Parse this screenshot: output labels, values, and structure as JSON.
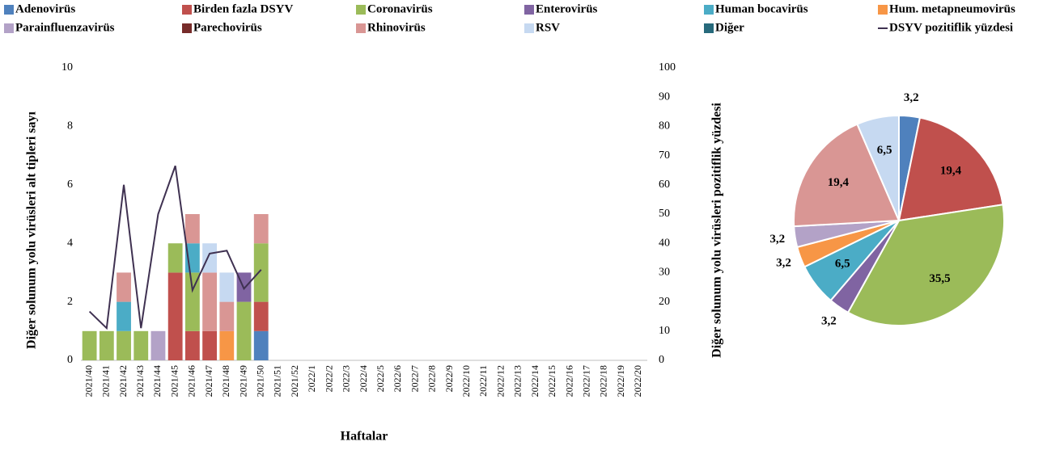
{
  "chart_data": [
    {
      "type": "bar",
      "categories": [
        "2021/40",
        "2021/41",
        "2021/42",
        "2021/43",
        "2021/44",
        "2021/45",
        "2021/46",
        "2021/47",
        "2021/48",
        "2021/49",
        "2021/50",
        "2021/51",
        "2021/52",
        "2022/1",
        "2022/2",
        "2022/3",
        "2022/4",
        "2022/5",
        "2022/6",
        "2022/7",
        "2022/8",
        "2022/9",
        "2022/10",
        "2022/11",
        "2022/12",
        "2022/13",
        "2022/14",
        "2022/15",
        "2022/16",
        "2022/17",
        "2022/18",
        "2022/19",
        "2022/20"
      ],
      "xlabel": "Haftalar",
      "ylabel": "Diğer solunum yolu virüsleri alt tipleri sayı",
      "y2label": "Diğer solunum yolu virüsleri pozitiflik yüzdesi",
      "ylim": [
        0,
        10
      ],
      "yticks": [
        0,
        2,
        4,
        6,
        8,
        10
      ],
      "y2lim": [
        0,
        100
      ],
      "y2ticks": [
        0,
        10,
        20,
        30,
        40,
        50,
        60,
        70,
        80,
        90,
        100
      ],
      "grid": false,
      "stacked": true,
      "legend": "top",
      "series": [
        {
          "name": "Adenovirüs",
          "color": "#4f81bd",
          "values": [
            0,
            0,
            0,
            0,
            0,
            0,
            0,
            0,
            0,
            0,
            1,
            null,
            null,
            null,
            null,
            null,
            null,
            null,
            null,
            null,
            null,
            null,
            null,
            null,
            null,
            null,
            null,
            null,
            null,
            null,
            null,
            null,
            null
          ]
        },
        {
          "name": "Birden fazla DSYV",
          "color": "#c0504d",
          "values": [
            0,
            0,
            0,
            0,
            0,
            3,
            1,
            1,
            0,
            0,
            1,
            null,
            null,
            null,
            null,
            null,
            null,
            null,
            null,
            null,
            null,
            null,
            null,
            null,
            null,
            null,
            null,
            null,
            null,
            null,
            null,
            null,
            null
          ]
        },
        {
          "name": "Coronavirüs",
          "color": "#9bbb59",
          "values": [
            1,
            1,
            1,
            1,
            0,
            1,
            2,
            0,
            0,
            2,
            2,
            null,
            null,
            null,
            null,
            null,
            null,
            null,
            null,
            null,
            null,
            null,
            null,
            null,
            null,
            null,
            null,
            null,
            null,
            null,
            null,
            null,
            null
          ]
        },
        {
          "name": "Enterovirüs",
          "color": "#8064a2",
          "values": [
            0,
            0,
            0,
            0,
            0,
            0,
            0,
            0,
            0,
            1,
            0,
            null,
            null,
            null,
            null,
            null,
            null,
            null,
            null,
            null,
            null,
            null,
            null,
            null,
            null,
            null,
            null,
            null,
            null,
            null,
            null,
            null,
            null
          ]
        },
        {
          "name": "Human bocavirüs",
          "color": "#4bacc6",
          "values": [
            0,
            0,
            1,
            0,
            0,
            0,
            1,
            0,
            0,
            0,
            0,
            null,
            null,
            null,
            null,
            null,
            null,
            null,
            null,
            null,
            null,
            null,
            null,
            null,
            null,
            null,
            null,
            null,
            null,
            null,
            null,
            null,
            null
          ]
        },
        {
          "name": "Hum. metapneumovirüs",
          "color": "#f79646",
          "values": [
            0,
            0,
            0,
            0,
            0,
            0,
            0,
            0,
            1,
            0,
            0,
            null,
            null,
            null,
            null,
            null,
            null,
            null,
            null,
            null,
            null,
            null,
            null,
            null,
            null,
            null,
            null,
            null,
            null,
            null,
            null,
            null,
            null
          ]
        },
        {
          "name": "Parainfluenzavirüs",
          "color": "#b3a2c7",
          "values": [
            0,
            0,
            0,
            0,
            1,
            0,
            0,
            0,
            0,
            0,
            0,
            null,
            null,
            null,
            null,
            null,
            null,
            null,
            null,
            null,
            null,
            null,
            null,
            null,
            null,
            null,
            null,
            null,
            null,
            null,
            null,
            null,
            null
          ]
        },
        {
          "name": "Parechovirüs",
          "color": "#772c2a",
          "values": [
            0,
            0,
            0,
            0,
            0,
            0,
            0,
            0,
            0,
            0,
            0,
            null,
            null,
            null,
            null,
            null,
            null,
            null,
            null,
            null,
            null,
            null,
            null,
            null,
            null,
            null,
            null,
            null,
            null,
            null,
            null,
            null,
            null
          ]
        },
        {
          "name": "Rhinovirüs",
          "color": "#d99694",
          "values": [
            0,
            0,
            1,
            0,
            0,
            0,
            1,
            2,
            1,
            0,
            1,
            null,
            null,
            null,
            null,
            null,
            null,
            null,
            null,
            null,
            null,
            null,
            null,
            null,
            null,
            null,
            null,
            null,
            null,
            null,
            null,
            null,
            null
          ]
        },
        {
          "name": "RSV",
          "color": "#c6d9f1",
          "values": [
            0,
            0,
            0,
            0,
            0,
            0,
            0,
            1,
            1,
            0,
            0,
            null,
            null,
            null,
            null,
            null,
            null,
            null,
            null,
            null,
            null,
            null,
            null,
            null,
            null,
            null,
            null,
            null,
            null,
            null,
            null,
            null,
            null
          ]
        },
        {
          "name": "Diğer",
          "color": "#276a7c",
          "values": [
            0,
            0,
            0,
            0,
            0,
            0,
            0,
            0,
            0,
            0,
            0,
            null,
            null,
            null,
            null,
            null,
            null,
            null,
            null,
            null,
            null,
            null,
            null,
            null,
            null,
            null,
            null,
            null,
            null,
            null,
            null,
            null,
            null
          ]
        },
        {
          "name": "DSYV pozitiflik yüzdesi",
          "type": "line",
          "axis": "y2",
          "color": "#3f3151",
          "values": [
            16.7,
            11,
            60,
            11,
            50,
            66.5,
            24,
            36.5,
            37.5,
            24.5,
            31,
            null,
            null,
            null,
            null,
            null,
            null,
            null,
            null,
            null,
            null,
            null,
            null,
            null,
            null,
            null,
            null,
            null,
            null,
            null,
            null,
            null,
            null
          ]
        }
      ]
    },
    {
      "type": "pie",
      "values": [
        3.2,
        19.4,
        35.5,
        3.2,
        6.5,
        3.2,
        3.2,
        19.4,
        6.5
      ],
      "value_labels": [
        "3,2",
        "19,4",
        "35,5",
        "3,2",
        "6,5",
        "3,2",
        "3,2",
        "19,4",
        "6,5"
      ],
      "colors": [
        "#4f81bd",
        "#c0504d",
        "#9bbb59",
        "#8064a2",
        "#4bacc6",
        "#f79646",
        "#b3a2c7",
        "#d99694",
        "#c6d9f1"
      ]
    }
  ]
}
